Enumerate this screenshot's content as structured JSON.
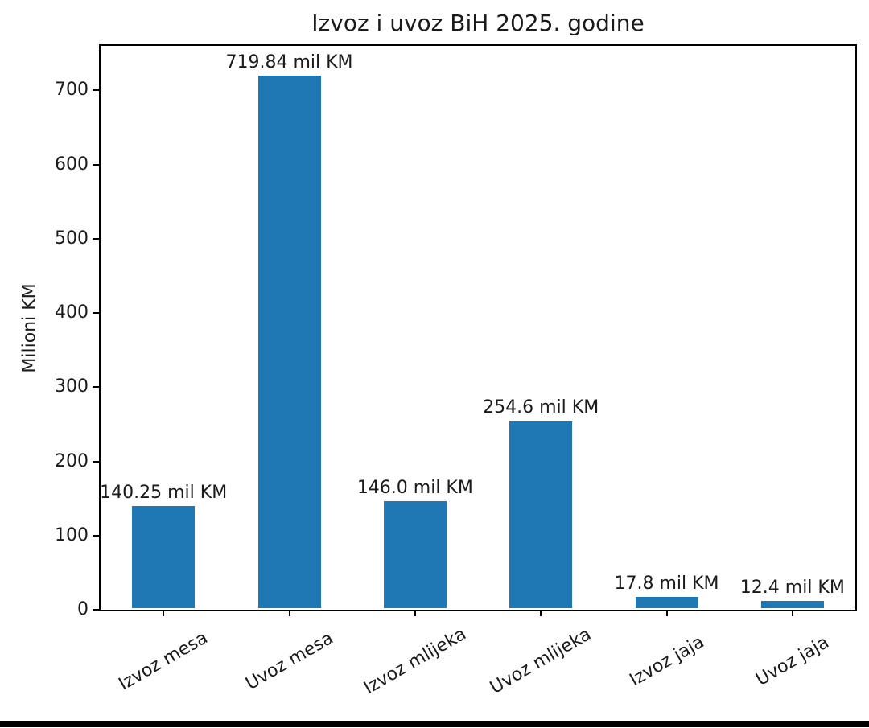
{
  "chart_data": {
    "type": "bar",
    "title": "Izvoz i uvoz BiH 2025. godine",
    "ylabel": "Milioni KM",
    "xlabel": "",
    "categories": [
      "Izvoz mesa",
      "Uvoz mesa",
      "Izvoz mlijeka",
      "Uvoz mlijeka",
      "Izvoz jaja",
      "Uvoz jaja"
    ],
    "values": [
      140.25,
      719.84,
      146.0,
      254.6,
      17.8,
      12.4
    ],
    "value_labels": [
      "140.25 mil KM",
      "719.84 mil KM",
      "146.0 mil KM",
      "254.6 mil KM",
      "17.8 mil KM",
      "12.4 mil KM"
    ],
    "yticks": [
      0,
      100,
      200,
      300,
      400,
      500,
      600,
      700
    ],
    "ylim": [
      0,
      760
    ],
    "bar_color": "#1f77b4",
    "grid": false,
    "legend": "none",
    "xtick_rotation": 30
  }
}
